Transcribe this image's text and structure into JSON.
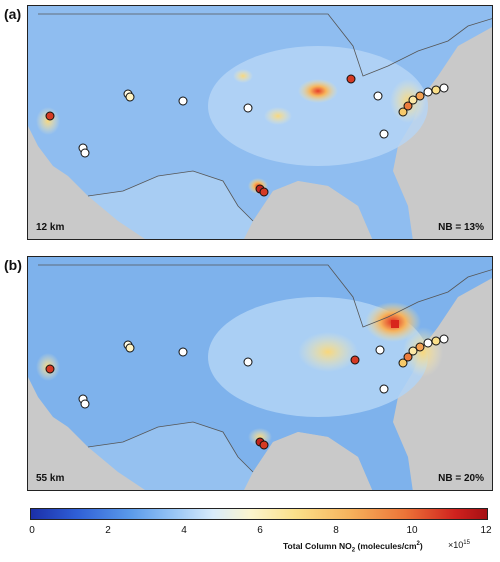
{
  "panels": [
    {
      "letter": "(a)",
      "resolution": "12 km",
      "nb": "NB = 13%"
    },
    {
      "letter": "(b)",
      "resolution": "55 km",
      "nb": "NB = 20%"
    }
  ],
  "colorbar": {
    "ticks": [
      "0",
      "2",
      "4",
      "6",
      "8",
      "10",
      "12"
    ],
    "title": "Total Column NO",
    "title_sub": "2",
    "title_units": " (molecules/cm",
    "title_sup": "2",
    "title_end": ")",
    "exponent": "×10",
    "exponent_sup": "15"
  },
  "colors": {
    "land": "#c9c9c9",
    "low": "#1b2fa8",
    "mid": "#fbf5cf",
    "high": "#a50f13"
  }
}
